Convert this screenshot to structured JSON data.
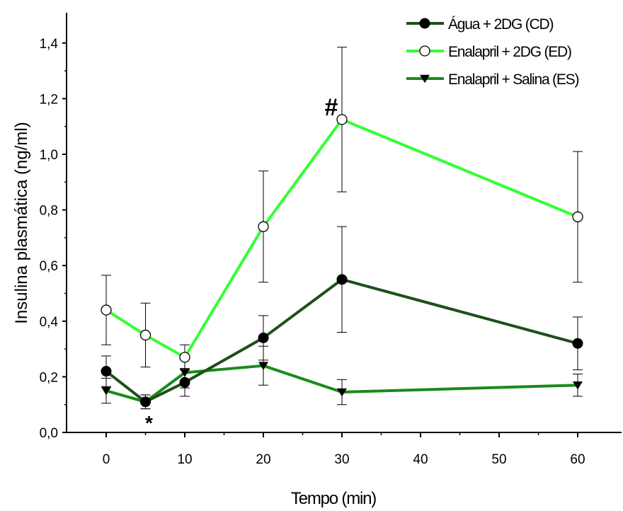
{
  "chart_data": {
    "type": "line",
    "xlabel": "Tempo (min)",
    "ylabel": "Insulina plasmática (ng/ml)",
    "x_categories": [
      0,
      5,
      10,
      20,
      30,
      60
    ],
    "x_tick_labels": [
      "0",
      "10",
      "20",
      "30",
      "40",
      "50",
      "60"
    ],
    "y_tick_labels": [
      "0,0",
      "0,2",
      "0,4",
      "0,6",
      "0,8",
      "1,0",
      "1,2",
      "1,4"
    ],
    "ylim": [
      0,
      1.45
    ],
    "grid": false,
    "legend_position": "top-right",
    "series": [
      {
        "name": "Água + 2DG (CD)",
        "color": "#1f4f1a",
        "marker": "filled-circle",
        "x": [
          0,
          5,
          10,
          20,
          30,
          60
        ],
        "y": [
          0.22,
          0.11,
          0.18,
          0.34,
          0.55,
          0.32
        ],
        "error": [
          0.055,
          0.025,
          0.05,
          0.08,
          0.19,
          0.095
        ]
      },
      {
        "name": "Enalapril + 2DG (ED)",
        "color": "#33ff33",
        "marker": "open-circle",
        "x": [
          0,
          5,
          10,
          20,
          30,
          60
        ],
        "y": [
          0.44,
          0.35,
          0.27,
          0.74,
          1.125,
          0.775
        ],
        "error": [
          0.125,
          0.115,
          0.045,
          0.2,
          0.26,
          0.235
        ]
      },
      {
        "name": "Enalapril + Salina (ES)",
        "color": "#1a8a1a",
        "marker": "filled-triangle-down",
        "x": [
          0,
          5,
          10,
          20,
          30,
          60
        ],
        "y": [
          0.15,
          0.11,
          0.215,
          0.24,
          0.145,
          0.17
        ],
        "error": [
          0.045,
          0.025,
          0.055,
          0.07,
          0.045,
          0.04
        ]
      }
    ],
    "annotations": [
      {
        "text": "*",
        "x": 5
      },
      {
        "text": "#",
        "x": 30
      }
    ]
  }
}
